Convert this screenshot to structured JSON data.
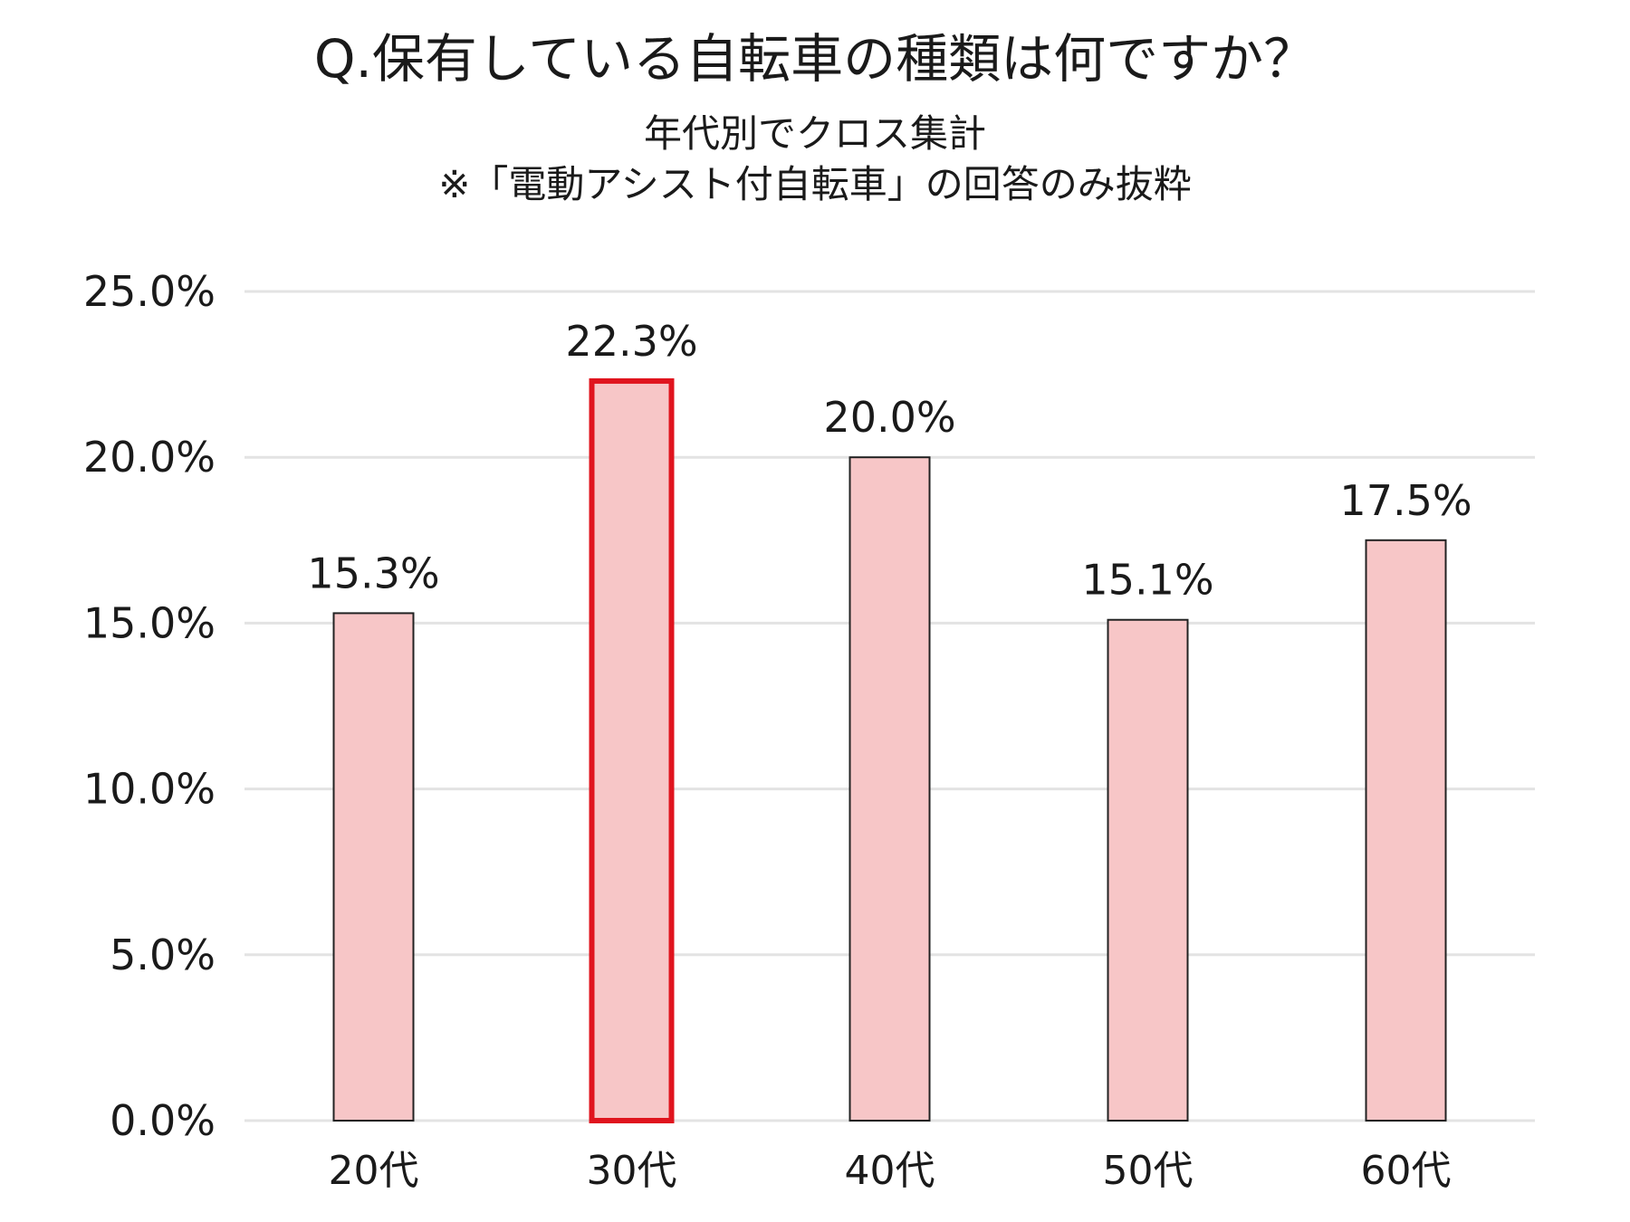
{
  "chart_data": {
    "type": "bar",
    "title": "Q.保有している自転車の種類は何ですか？",
    "subtitle": "年代別でクロス集計",
    "note": "※「電動アシスト付自転車」の回答のみ抜粋",
    "categories": [
      "20代",
      "30代",
      "40代",
      "50代",
      "60代"
    ],
    "values": [
      15.3,
      22.3,
      20.0,
      15.1,
      17.5
    ],
    "data_labels": [
      "15.3%",
      "22.3%",
      "20.0%",
      "15.1%",
      "17.5%"
    ],
    "highlighted_category": "30代",
    "ylim": [
      0,
      25
    ],
    "yticks": [
      0,
      5,
      10,
      15,
      20,
      25
    ],
    "ytick_labels": [
      "0.0%",
      "5.0%",
      "10.0%",
      "15.0%",
      "20.0%",
      "25.0%"
    ],
    "xlabel": "",
    "ylabel": "",
    "grid": true,
    "legend": "none",
    "colors": {
      "bar_fill": "#f7c6c7",
      "bar_stroke": "#222222",
      "highlight_stroke": "#e0141e",
      "grid": "#e3e3e3"
    }
  }
}
